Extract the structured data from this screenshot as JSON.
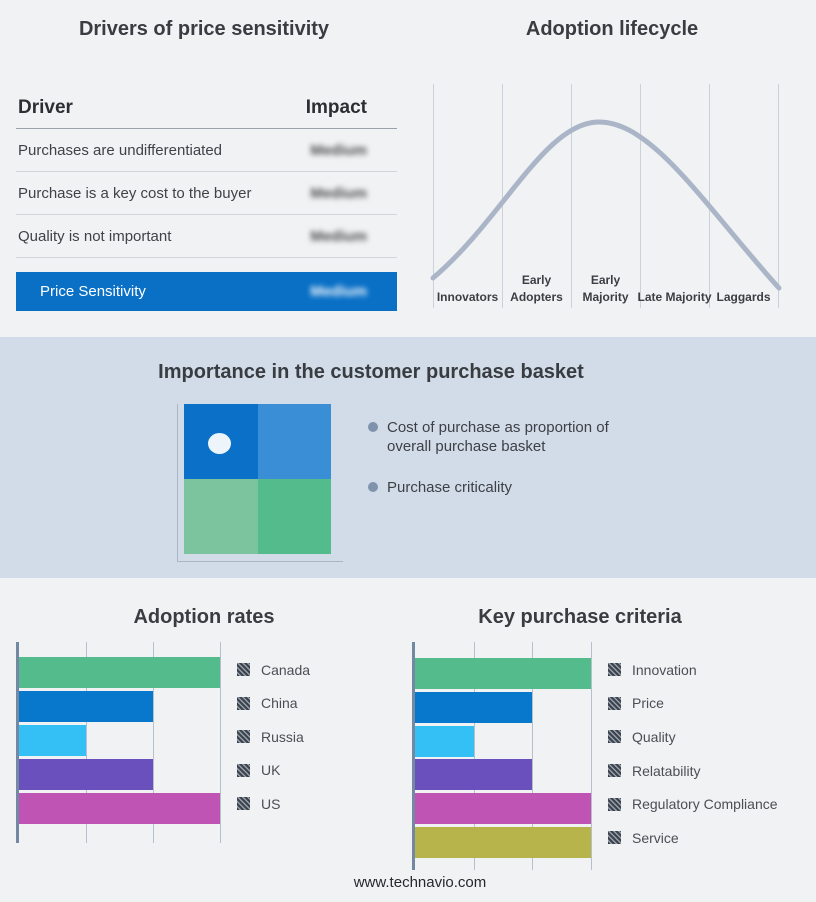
{
  "drivers_panel": {
    "title": "Drivers of price sensitivity",
    "col_driver": "Driver",
    "col_impact": "Impact",
    "rows": [
      {
        "driver": "Purchases are undifferentiated",
        "impact": "Medium"
      },
      {
        "driver": "Purchase is a key cost to the buyer",
        "impact": "Medium"
      },
      {
        "driver": "Quality is not important",
        "impact": "Medium"
      }
    ],
    "highlight": {
      "driver": "Price Sensitivity",
      "impact": "Medium"
    },
    "highlight_color": "#0a70c6"
  },
  "basket_panel": {
    "title": "Importance in the customer purchase basket",
    "bullets": [
      "Cost of purchase as proportion of overall purchase basket",
      "Purchase criticality"
    ],
    "quadrant_colors": [
      "#0b70c7",
      "#3a8ed6",
      "#7cc49d",
      "#53bb8c"
    ],
    "dot_color": "#eef5fa"
  },
  "footer": {
    "url": "www.technavio.com"
  },
  "chart_data": [
    {
      "type": "line",
      "title": "Adoption lifecycle",
      "subtype": "bell-curve",
      "categories": [
        "Innovators",
        "Early Adopters",
        "Early Majority",
        "Late Majority",
        "Laggards"
      ],
      "line_color": "#aab5c7",
      "grid": "vertical-stage-separators",
      "peak_stage": "Early Majority"
    },
    {
      "type": "bar",
      "title": "Adoption rates",
      "orientation": "horizontal",
      "categories": [
        "Canada",
        "China",
        "Russia",
        "UK",
        "US"
      ],
      "values": [
        3,
        2,
        1,
        2,
        3
      ],
      "xlim": [
        0,
        3
      ],
      "colors": [
        "#53bb8c",
        "#0878cc",
        "#35c0f5",
        "#6950bc",
        "#c054b5"
      ],
      "legend_position": "right",
      "grid": "on"
    },
    {
      "type": "bar",
      "title": "Key purchase criteria",
      "orientation": "horizontal",
      "categories": [
        "Innovation",
        "Price",
        "Quality",
        "Relatability",
        "Regulatory Compliance",
        "Service"
      ],
      "values": [
        3,
        2,
        1,
        2,
        3,
        3
      ],
      "xlim": [
        0,
        3
      ],
      "colors": [
        "#53bb8c",
        "#0878cc",
        "#35c0f5",
        "#6950bc",
        "#c054b5",
        "#b6b44b"
      ],
      "legend_position": "right",
      "grid": "on"
    }
  ]
}
